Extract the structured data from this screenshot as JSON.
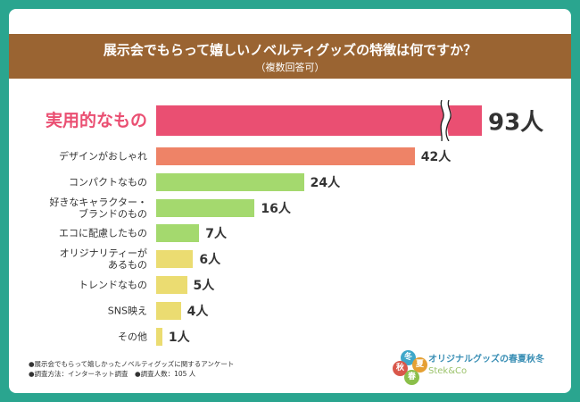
{
  "chart_data": {
    "type": "bar",
    "title": "展示会でもらって嬉しいノベルティグッズの特徴は何ですか？",
    "subtitle": "（複数回答可）",
    "categories": [
      "実用的なもの",
      "デザインがおしゃれ",
      "コンパクトなもの",
      "好きなキャラクター・\nブランドのもの",
      "エコに配慮したもの",
      "オリジナリティーが\nあるもの",
      "トレンドなもの",
      "SNS映え",
      "その他"
    ],
    "values": [
      93,
      42,
      24,
      16,
      7,
      6,
      5,
      4,
      1
    ],
    "value_labels": [
      "93人",
      "42人",
      "24人",
      "16人",
      "7人",
      "6人",
      "5人",
      "4人",
      "1人"
    ],
    "colors": [
      "#ea4f72",
      "#ee8367",
      "#a4d96e",
      "#a4d96e",
      "#a4d96e",
      "#ebdc71",
      "#ebdc71",
      "#ebdc71",
      "#ebdc71"
    ],
    "notes": [
      "●展示会でもらって嬉しかったノベルティグッズに関するアンケート",
      "●調査方法：インターネット調査　●調査人数：105 人"
    ]
  },
  "logo": {
    "badges": [
      "冬",
      "夏",
      "秋",
      "春"
    ],
    "text": "オリジナルグッズの春夏秋冬",
    "sub": "Stek&Co"
  }
}
